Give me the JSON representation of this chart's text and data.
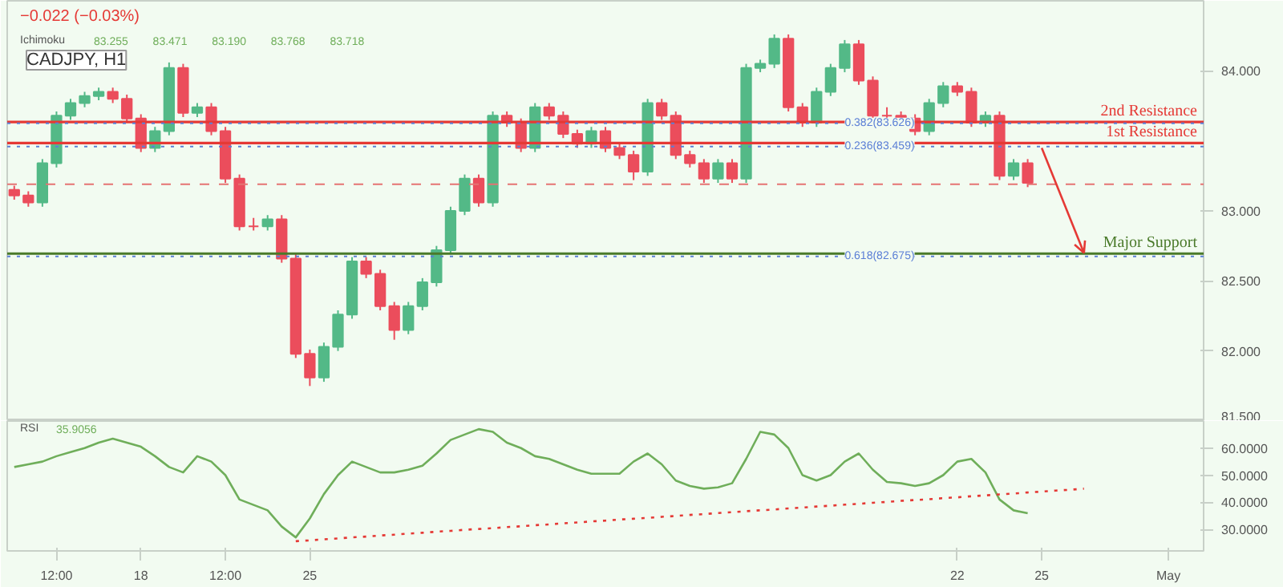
{
  "chart_data": [
    {
      "type": "candlestick",
      "title": "CADJPY, H1",
      "categories": [
        null,
        null,
        null,
        null,
        null,
        null,
        null,
        null,
        null,
        null,
        null,
        null,
        null,
        null,
        null,
        null,
        null,
        null,
        null,
        null,
        null,
        null,
        null,
        null,
        null,
        null,
        null,
        null,
        null,
        null,
        null,
        null,
        null,
        null,
        null,
        null,
        null,
        null,
        null,
        null,
        null,
        null,
        null,
        null,
        null,
        null,
        null,
        null,
        null,
        null,
        null,
        null,
        null,
        null,
        null,
        null,
        null,
        null,
        null,
        null,
        null,
        null,
        null,
        null,
        null,
        null,
        null,
        null,
        null,
        null,
        null,
        null,
        null,
        null,
        null,
        null,
        null,
        null,
        null,
        null,
        null,
        null,
        null,
        null,
        null
      ],
      "ohlc": [
        [
          83.15,
          83.18,
          83.08,
          83.11
        ],
        [
          83.11,
          83.14,
          83.03,
          83.06
        ],
        [
          83.06,
          83.37,
          83.03,
          83.34
        ],
        [
          83.34,
          83.71,
          83.31,
          83.68
        ],
        [
          83.68,
          83.8,
          83.65,
          83.77
        ],
        [
          83.77,
          83.85,
          83.74,
          83.82
        ],
        [
          83.82,
          83.88,
          83.79,
          83.85
        ],
        [
          83.85,
          83.88,
          83.77,
          83.8
        ],
        [
          83.8,
          83.83,
          83.63,
          83.66
        ],
        [
          83.66,
          83.69,
          83.42,
          83.45
        ],
        [
          83.45,
          83.6,
          83.42,
          83.57
        ],
        [
          83.57,
          84.06,
          83.54,
          84.02
        ],
        [
          84.02,
          84.05,
          83.67,
          83.7
        ],
        [
          83.7,
          83.77,
          83.67,
          83.74
        ],
        [
          83.74,
          83.77,
          83.54,
          83.57
        ],
        [
          83.57,
          83.6,
          83.2,
          83.23
        ],
        [
          83.23,
          83.26,
          82.86,
          82.89
        ],
        [
          82.89,
          82.95,
          82.86,
          82.89
        ],
        [
          82.89,
          82.97,
          82.86,
          82.94
        ],
        [
          82.94,
          82.97,
          82.63,
          82.66
        ],
        [
          82.66,
          82.69,
          81.95,
          81.98
        ],
        [
          81.98,
          82.01,
          81.75,
          81.81
        ],
        [
          81.81,
          82.06,
          81.78,
          82.03
        ],
        [
          82.03,
          82.29,
          82.0,
          82.26
        ],
        [
          82.26,
          82.67,
          82.23,
          82.64
        ],
        [
          82.64,
          82.67,
          82.52,
          82.55
        ],
        [
          82.55,
          82.58,
          82.29,
          82.32
        ],
        [
          82.32,
          82.35,
          82.08,
          82.15
        ],
        [
          82.15,
          82.35,
          82.12,
          82.32
        ],
        [
          82.32,
          82.52,
          82.29,
          82.49
        ],
        [
          82.49,
          82.75,
          82.46,
          82.72
        ],
        [
          82.72,
          83.03,
          82.69,
          83.0
        ],
        [
          83.0,
          83.26,
          82.97,
          83.23
        ],
        [
          83.23,
          83.26,
          83.03,
          83.06
        ],
        [
          83.06,
          83.71,
          83.03,
          83.68
        ],
        [
          83.68,
          83.71,
          83.6,
          83.63
        ],
        [
          83.63,
          83.66,
          83.42,
          83.45
        ],
        [
          83.45,
          83.77,
          83.42,
          83.74
        ],
        [
          83.74,
          83.77,
          83.65,
          83.68
        ],
        [
          83.68,
          83.71,
          83.52,
          83.55
        ],
        [
          83.55,
          83.58,
          83.45,
          83.48
        ],
        [
          83.48,
          83.6,
          83.45,
          83.57
        ],
        [
          83.57,
          83.6,
          83.42,
          83.45
        ],
        [
          83.45,
          83.48,
          83.37,
          83.4
        ],
        [
          83.4,
          83.43,
          83.22,
          83.28
        ],
        [
          83.28,
          83.8,
          83.25,
          83.77
        ],
        [
          83.77,
          83.8,
          83.65,
          83.68
        ],
        [
          83.68,
          83.71,
          83.37,
          83.4
        ],
        [
          83.4,
          83.43,
          83.31,
          83.34
        ],
        [
          83.34,
          83.37,
          83.2,
          83.23
        ],
        [
          83.23,
          83.37,
          83.2,
          83.34
        ],
        [
          83.34,
          83.37,
          83.2,
          83.23
        ],
        [
          83.23,
          84.05,
          83.2,
          84.02
        ],
        [
          84.02,
          84.08,
          83.99,
          84.05
        ],
        [
          84.05,
          84.26,
          84.02,
          84.23
        ],
        [
          84.23,
          84.26,
          83.71,
          83.74
        ],
        [
          83.74,
          83.77,
          83.6,
          83.63
        ],
        [
          83.63,
          83.88,
          83.6,
          83.85
        ],
        [
          83.85,
          84.05,
          83.82,
          84.02
        ],
        [
          84.02,
          84.22,
          83.99,
          84.19
        ],
        [
          84.19,
          84.22,
          83.9,
          83.93
        ],
        [
          83.93,
          83.96,
          83.65,
          83.68
        ],
        [
          83.68,
          83.74,
          83.65,
          83.68
        ],
        [
          83.68,
          83.71,
          83.63,
          83.66
        ],
        [
          83.66,
          83.69,
          83.54,
          83.57
        ],
        [
          83.57,
          83.8,
          83.54,
          83.77
        ],
        [
          83.77,
          83.92,
          83.74,
          83.89
        ],
        [
          83.89,
          83.92,
          83.82,
          83.85
        ],
        [
          83.85,
          83.88,
          83.6,
          83.63
        ],
        [
          83.63,
          83.71,
          83.6,
          83.68
        ],
        [
          83.68,
          83.71,
          83.22,
          83.25
        ],
        [
          83.25,
          83.37,
          83.22,
          83.34
        ],
        [
          83.34,
          83.37,
          83.17,
          83.2
        ],
        null,
        null,
        null,
        null,
        null,
        null,
        null,
        null,
        null,
        null,
        null,
        null
      ],
      "colors": [
        "#eb4d5c",
        "#eb4d5c",
        "#53b987",
        "#53b987",
        "#53b987",
        "#53b987",
        "#53b987",
        "#eb4d5c",
        "#eb4d5c",
        "#eb4d5c",
        "#53b987",
        "#53b987",
        "#eb4d5c",
        "#53b987",
        "#eb4d5c",
        "#eb4d5c",
        "#eb4d5c",
        "#eb4d5c",
        "#53b987",
        "#eb4d5c",
        "#eb4d5c",
        "#eb4d5c",
        "#53b987",
        "#53b987",
        "#53b987",
        "#eb4d5c",
        "#eb4d5c",
        "#eb4d5c",
        "#53b987",
        "#53b987",
        "#53b987",
        "#53b987",
        "#53b987",
        "#eb4d5c",
        "#53b987",
        "#eb4d5c",
        "#eb4d5c",
        "#53b987",
        "#eb4d5c",
        "#eb4d5c",
        "#eb4d5c",
        "#53b987",
        "#eb4d5c",
        "#eb4d5c",
        "#eb4d5c",
        "#53b987",
        "#eb4d5c",
        "#eb4d5c",
        "#eb4d5c",
        "#eb4d5c",
        "#53b987",
        "#eb4d5c",
        "#53b987",
        "#53b987",
        "#53b987",
        "#eb4d5c",
        "#eb4d5c",
        "#53b987",
        "#53b987",
        "#53b987",
        "#eb4d5c",
        "#eb4d5c",
        "#eb4d5c",
        "#eb4d5c",
        "#eb4d5c",
        "#53b987",
        "#53b987",
        "#eb4d5c",
        "#eb4d5c",
        "#53b987",
        "#eb4d5c",
        "#53b987",
        "#eb4d5c",
        null,
        null,
        null,
        null,
        null,
        null,
        null,
        null,
        null,
        null,
        null,
        null
      ],
      "series": [
        {
          "type": "line",
          "color": "#e53935",
          "values": [
            null,
            null,
            null,
            null,
            null,
            null,
            null,
            null,
            null,
            null,
            null,
            null,
            null,
            null,
            null,
            null,
            null,
            null,
            null,
            null,
            null,
            null,
            null,
            null,
            null,
            null,
            null,
            null,
            null,
            null,
            null,
            null,
            null,
            null,
            null,
            null,
            null,
            null,
            null,
            null,
            null,
            null,
            null,
            null,
            null,
            null,
            null,
            null,
            null,
            null,
            null,
            null,
            null,
            null,
            null,
            null,
            null,
            null,
            null,
            null,
            null,
            null,
            null,
            null,
            null,
            null,
            null,
            null,
            null,
            null,
            null,
            null,
            null,
            83.45,
            null,
            null,
            82.7,
            null,
            null,
            null,
            null,
            null,
            null,
            null,
            null
          ]
        }
      ],
      "ylim": [
        81.5,
        84.5
      ],
      "yticks": [
        {
          "value": 81.5,
          "label": "81.500"
        },
        {
          "value": 82,
          "label": "82.000"
        },
        {
          "value": 82.5,
          "label": "82.500"
        },
        {
          "value": 83,
          "label": "83.000"
        },
        {
          "value": 84,
          "label": "84.000"
        }
      ],
      "tick_labels": "y",
      "ref_lines": [
        {
          "axis": "y",
          "value": 83.635,
          "label": "2nd Resistance",
          "color": "#e53935",
          "line_style": "solid"
        },
        {
          "axis": "y",
          "value": 83.484,
          "label": "1st Resistance",
          "color": "#e53935",
          "line_style": "solid"
        },
        {
          "axis": "y",
          "value": 82.695,
          "label": "Major Support",
          "color": "#4a7a2a",
          "line_style": "solid"
        },
        {
          "axis": "y",
          "value": 83.19,
          "color": "#e57373",
          "line_style": "dashed"
        },
        {
          "axis": "y",
          "value": 83.626,
          "label": "0.382(83.626)",
          "color": "#5b7fd6",
          "line_style": "dotted"
        },
        {
          "axis": "y",
          "value": 83.459,
          "label": "0.236(83.459)",
          "color": "#5b7fd6",
          "line_style": "dotted"
        },
        {
          "axis": "y",
          "value": 82.675,
          "label": "0.618(82.675)",
          "color": "#5b7fd6",
          "line_style": "dotted"
        }
      ],
      "annotations": [
        "−0.022 (−0.03%)",
        "Ichimoku",
        "83.255",
        "83.471",
        "83.190",
        "83.768",
        "83.718"
      ]
    },
    {
      "type": "line",
      "categories": [
        null,
        null,
        null,
        "12:00",
        null,
        null,
        null,
        null,
        null,
        "18",
        null,
        null,
        null,
        null,
        null,
        "12:00",
        null,
        null,
        null,
        null,
        null,
        "25",
        null,
        null,
        null,
        null,
        null,
        null,
        null,
        null,
        null,
        null,
        null,
        null,
        null,
        null,
        null,
        null,
        null,
        null,
        null,
        null,
        null,
        null,
        null,
        null,
        null,
        null,
        null,
        null,
        null,
        null,
        null,
        null,
        null,
        null,
        null,
        null,
        null,
        null,
        null,
        null,
        null,
        null,
        null,
        null,
        null,
        "22",
        null,
        null,
        null,
        null,
        null,
        "25",
        null,
        null,
        null,
        null,
        null,
        null,
        null,
        null,
        "May",
        null,
        null
      ],
      "series": [
        {
          "name": "RSI",
          "color": "#6fae5a",
          "values": [
            53,
            54,
            55,
            57,
            58.5,
            60,
            62,
            63.5,
            62,
            60.5,
            57,
            53,
            51,
            57,
            55,
            50,
            41,
            39,
            37,
            31,
            27,
            34,
            43,
            50,
            55,
            53,
            51,
            51,
            52,
            53.5,
            58,
            63,
            65,
            67,
            66,
            62,
            60,
            57,
            56,
            54,
            52,
            50.5,
            50.5,
            50.5,
            55,
            58,
            54,
            48,
            46,
            45,
            45.5,
            47,
            56,
            66,
            65,
            60,
            50,
            48,
            50,
            55,
            58,
            52,
            47.5,
            47,
            46,
            47,
            50,
            55,
            56,
            51,
            41,
            37,
            35.9,
            null,
            null,
            null,
            null,
            null,
            null,
            null,
            null,
            null,
            null,
            null,
            null
          ]
        },
        {
          "type": "line",
          "color": "#e53935",
          "line_style": "dotted",
          "values": [
            null,
            null,
            null,
            null,
            null,
            null,
            null,
            null,
            null,
            null,
            null,
            null,
            null,
            null,
            null,
            null,
            null,
            null,
            null,
            null,
            25.6,
            25.9,
            26.3,
            26.6,
            27.0,
            27.3,
            27.7,
            28.0,
            28.4,
            28.7,
            29.1,
            29.4,
            29.8,
            30.1,
            30.4,
            30.8,
            31.1,
            31.5,
            31.8,
            32.2,
            32.5,
            32.9,
            33.2,
            33.6,
            33.9,
            34.2,
            34.6,
            34.9,
            35.3,
            35.6,
            36.0,
            36.3,
            36.7,
            37.0,
            37.3,
            37.7,
            38.0,
            38.4,
            38.7,
            39.1,
            39.4,
            39.8,
            40.1,
            40.5,
            40.8,
            41.1,
            41.5,
            41.8,
            42.2,
            42.5,
            42.9,
            43.2,
            43.6,
            43.9,
            44.3,
            44.6,
            45.0,
            null,
            null,
            null,
            null,
            null,
            null,
            null,
            null
          ]
        }
      ],
      "ylim": [
        22,
        70
      ],
      "yticks": [
        {
          "value": 30,
          "label": "30.0000"
        },
        {
          "value": 40,
          "label": "40.0000"
        },
        {
          "value": 50,
          "label": "50.0000"
        },
        {
          "value": 60,
          "label": "60.0000"
        }
      ],
      "annotations": [
        "35.9056"
      ]
    }
  ]
}
